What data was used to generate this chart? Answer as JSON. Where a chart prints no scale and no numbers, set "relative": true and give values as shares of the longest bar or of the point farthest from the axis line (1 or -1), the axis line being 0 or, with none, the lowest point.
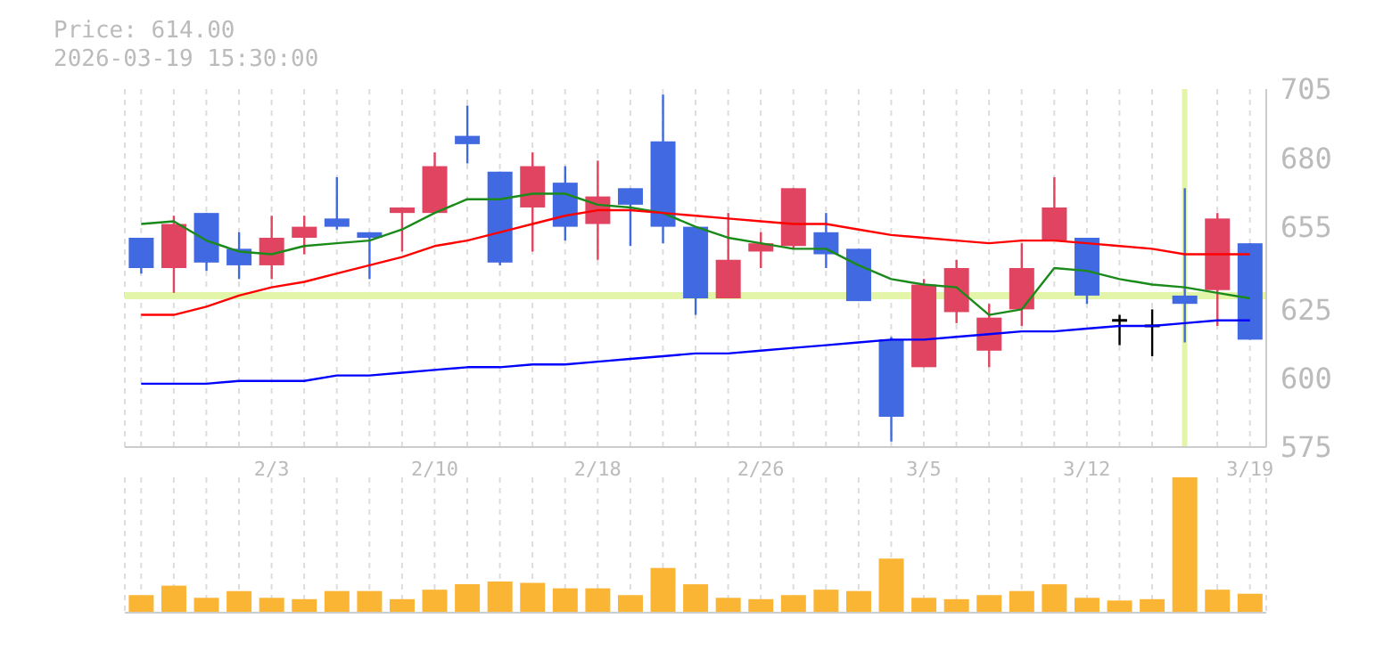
{
  "chart_data": [
    {
      "type": "candlestick",
      "title": "Price: 614.00",
      "subtitle": "2026-03-19 15:30:00",
      "categories": [
        null,
        null,
        null,
        null,
        "2/3",
        null,
        null,
        null,
        null,
        "2/10",
        null,
        null,
        null,
        null,
        "2/18",
        null,
        null,
        null,
        null,
        "2/26",
        null,
        null,
        null,
        null,
        "3/5",
        null,
        null,
        null,
        null,
        "3/12",
        null,
        null,
        null,
        null,
        "3/19"
      ],
      "ohlc": [
        [
          651,
          651,
          638,
          640
        ],
        [
          640,
          659,
          631,
          656
        ],
        [
          660,
          660,
          639,
          642
        ],
        [
          647,
          653,
          636,
          641
        ],
        [
          641,
          659,
          636,
          651
        ],
        [
          651,
          659,
          645,
          655
        ],
        [
          658,
          673,
          654,
          655
        ],
        [
          653,
          653,
          636,
          651
        ],
        [
          660,
          662,
          646,
          662
        ],
        [
          660,
          682,
          660,
          677
        ],
        [
          688,
          699,
          678,
          685
        ],
        [
          675,
          675,
          641,
          642
        ],
        [
          662,
          682,
          646,
          677
        ],
        [
          671,
          677,
          650,
          655
        ],
        [
          656,
          679,
          643,
          666
        ],
        [
          669,
          669,
          648,
          663
        ],
        [
          686,
          703,
          649,
          655
        ],
        [
          655,
          655,
          623,
          629
        ],
        [
          629,
          660,
          629,
          643
        ],
        [
          646,
          653,
          640,
          649
        ],
        [
          648,
          669,
          647,
          669
        ],
        [
          653,
          660,
          640,
          645
        ],
        [
          647,
          647,
          628,
          628
        ],
        [
          614,
          615,
          577,
          586
        ],
        [
          604,
          636,
          604,
          634
        ],
        [
          624,
          643,
          620,
          640
        ],
        [
          610,
          627,
          604,
          622
        ],
        [
          625,
          649,
          619,
          640
        ],
        [
          650,
          673,
          650,
          662
        ],
        [
          651,
          651,
          627,
          630
        ],
        [
          621,
          623,
          612,
          621
        ],
        [
          619,
          625,
          608,
          619
        ],
        [
          630,
          669,
          613,
          627
        ],
        [
          632,
          660,
          619,
          658
        ],
        [
          649,
          649,
          614,
          614
        ]
      ],
      "colors": [
        "#4169e1",
        "#e04460",
        "#4169e1",
        "#4169e1",
        "#e04460",
        "#e04460",
        "#4169e1",
        "#4169e1",
        "#e04460",
        "#e04460",
        "#4169e1",
        "#4169e1",
        "#e04460",
        "#4169e1",
        "#e04460",
        "#4169e1",
        "#4169e1",
        "#4169e1",
        "#e04460",
        "#e04460",
        "#e04460",
        "#4169e1",
        "#4169e1",
        "#4169e1",
        "#e04460",
        "#e04460",
        "#e04460",
        "#e04460",
        "#e04460",
        "#4169e1",
        "#000000",
        "#000000",
        "#4169e1",
        "#e04460",
        "#4169e1"
      ],
      "series": [
        {
          "type": "line",
          "color": "#1a8a1a",
          "values": [
            656,
            657,
            650,
            646,
            645,
            648,
            649,
            650,
            654,
            660,
            665,
            665,
            667,
            667,
            663,
            662,
            660,
            655,
            651,
            649,
            647,
            647,
            641,
            636,
            634,
            633,
            623,
            625,
            640,
            639,
            636,
            634,
            633,
            631,
            629
          ]
        },
        {
          "type": "line",
          "color": "#ff0000",
          "values": [
            623,
            623,
            626,
            630,
            633,
            635,
            638,
            641,
            644,
            648,
            650,
            653,
            656,
            659,
            661,
            661,
            660,
            659,
            658,
            657,
            656,
            656,
            654,
            652,
            651,
            650,
            649,
            650,
            650,
            649,
            648,
            647,
            645,
            645,
            645
          ]
        },
        {
          "type": "line",
          "color": "#0000ff",
          "values": [
            598,
            598,
            598,
            599,
            599,
            599,
            601,
            601,
            602,
            603,
            604,
            604,
            605,
            605,
            606,
            607,
            608,
            609,
            609,
            610,
            611,
            612,
            613,
            614,
            614,
            615,
            616,
            617,
            617,
            618,
            619,
            619,
            620,
            621,
            621
          ]
        }
      ],
      "ylim": [
        575,
        705
      ],
      "yticks": [
        575,
        600,
        625,
        655,
        680,
        705
      ],
      "grid": true,
      "ref_lines": [
        {
          "axis": "y",
          "value": 630,
          "color": "#e2f5a8"
        }
      ]
    },
    {
      "type": "bar",
      "values": [
        0.13,
        0.2,
        0.11,
        0.16,
        0.11,
        0.1,
        0.16,
        0.16,
        0.1,
        0.17,
        0.21,
        0.23,
        0.22,
        0.18,
        0.18,
        0.13,
        0.33,
        0.21,
        0.11,
        0.1,
        0.13,
        0.17,
        0.16,
        0.4,
        0.11,
        0.1,
        0.13,
        0.16,
        0.21,
        0.11,
        0.09,
        0.1,
        1,
        0.17,
        0.14
      ],
      "color": "#fbb535",
      "relative": true,
      "grid": "x"
    }
  ]
}
